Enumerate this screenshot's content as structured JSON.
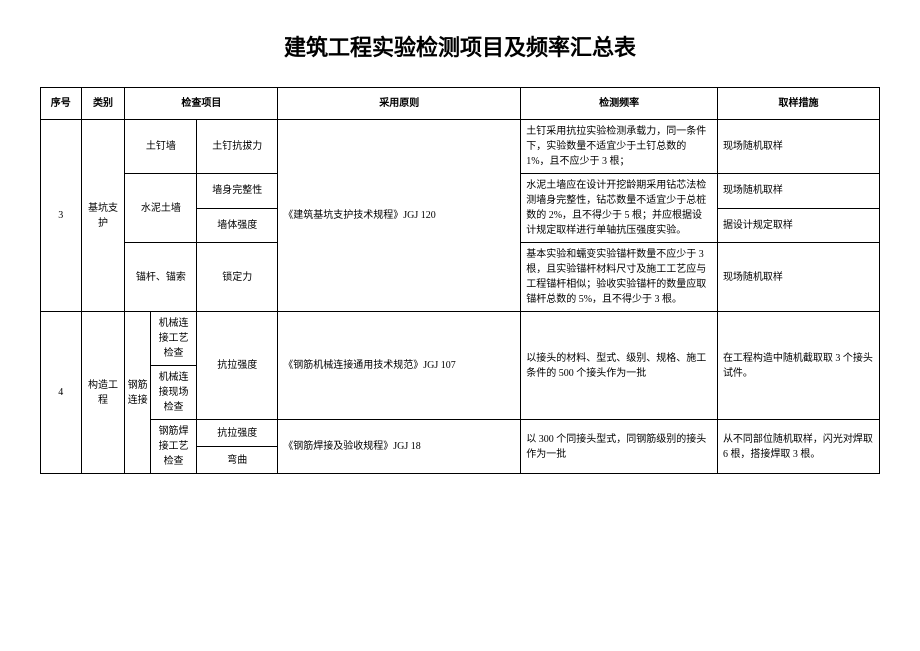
{
  "title": "建筑工程实验检测项目及频率汇总表",
  "headers": {
    "seq": "序号",
    "category": "类别",
    "check": "检查项目",
    "standard": "采用原则",
    "freq": "检测频率",
    "sample": "取样措施"
  },
  "rows": {
    "r3": {
      "seq": "3",
      "category": "基坑支护",
      "std": "《建筑基坑支护技术规程》JGJ 120",
      "a": {
        "chk1": "土钉墙",
        "chk2": "土钉抗拔力",
        "freq": "土钉采用抗拉实验检测承载力，同一条件下，实验数量不适宜少于土钉总数的 1%，且不应少于 3 根；",
        "sample": "现场随机取样"
      },
      "b": {
        "chk1": "水泥土墙",
        "chk2a": "墙身完整性",
        "chk2b": "墙体强度",
        "freq": "水泥土墙应在设计开挖龄期采用钻芯法检测墙身完整性，钻芯数量不适宜少于总桩数的 2%，且不得少于 5 根；并应根据设计规定取样进行单轴抗压强度实验。",
        "sample_a": "现场随机取样",
        "sample_b": "据设计规定取样"
      },
      "c": {
        "chk1": "锚杆、锚索",
        "chk2": "锁定力",
        "freq": "基本实验和蠕变实验锚杆数量不应少于 3 根，且实验锚杆材料尺寸及施工工艺应与工程锚杆相似；验收实验锚杆的数量应取锚杆总数的 5%，且不得少于 3 根。",
        "sample": "现场随机取样"
      }
    },
    "r4": {
      "seq": "4",
      "category": "构造工程",
      "group": "钢筋连接",
      "a": {
        "chk1a": "机械连接工艺检查",
        "chk1b": "机械连接现场检查",
        "chk2": "抗拉强度",
        "std": "《钢筋机械连接通用技术规范》JGJ 107",
        "freq": "以接头的材料、型式、级别、规格、施工条件的 500 个接头作为一批",
        "sample": "在工程构造中随机截取取 3 个接头试件。"
      },
      "b": {
        "chk1": "钢筋焊接工艺检查",
        "chk2a": "抗拉强度",
        "chk2b": "弯曲",
        "std": "《钢筋焊接及验收规程》JGJ 18",
        "freq": "以 300 个同接头型式，同钢筋级别的接头作为一批",
        "sample": "从不同部位随机取样，闪光对焊取 6 根，搭接焊取 3 根。"
      }
    }
  }
}
